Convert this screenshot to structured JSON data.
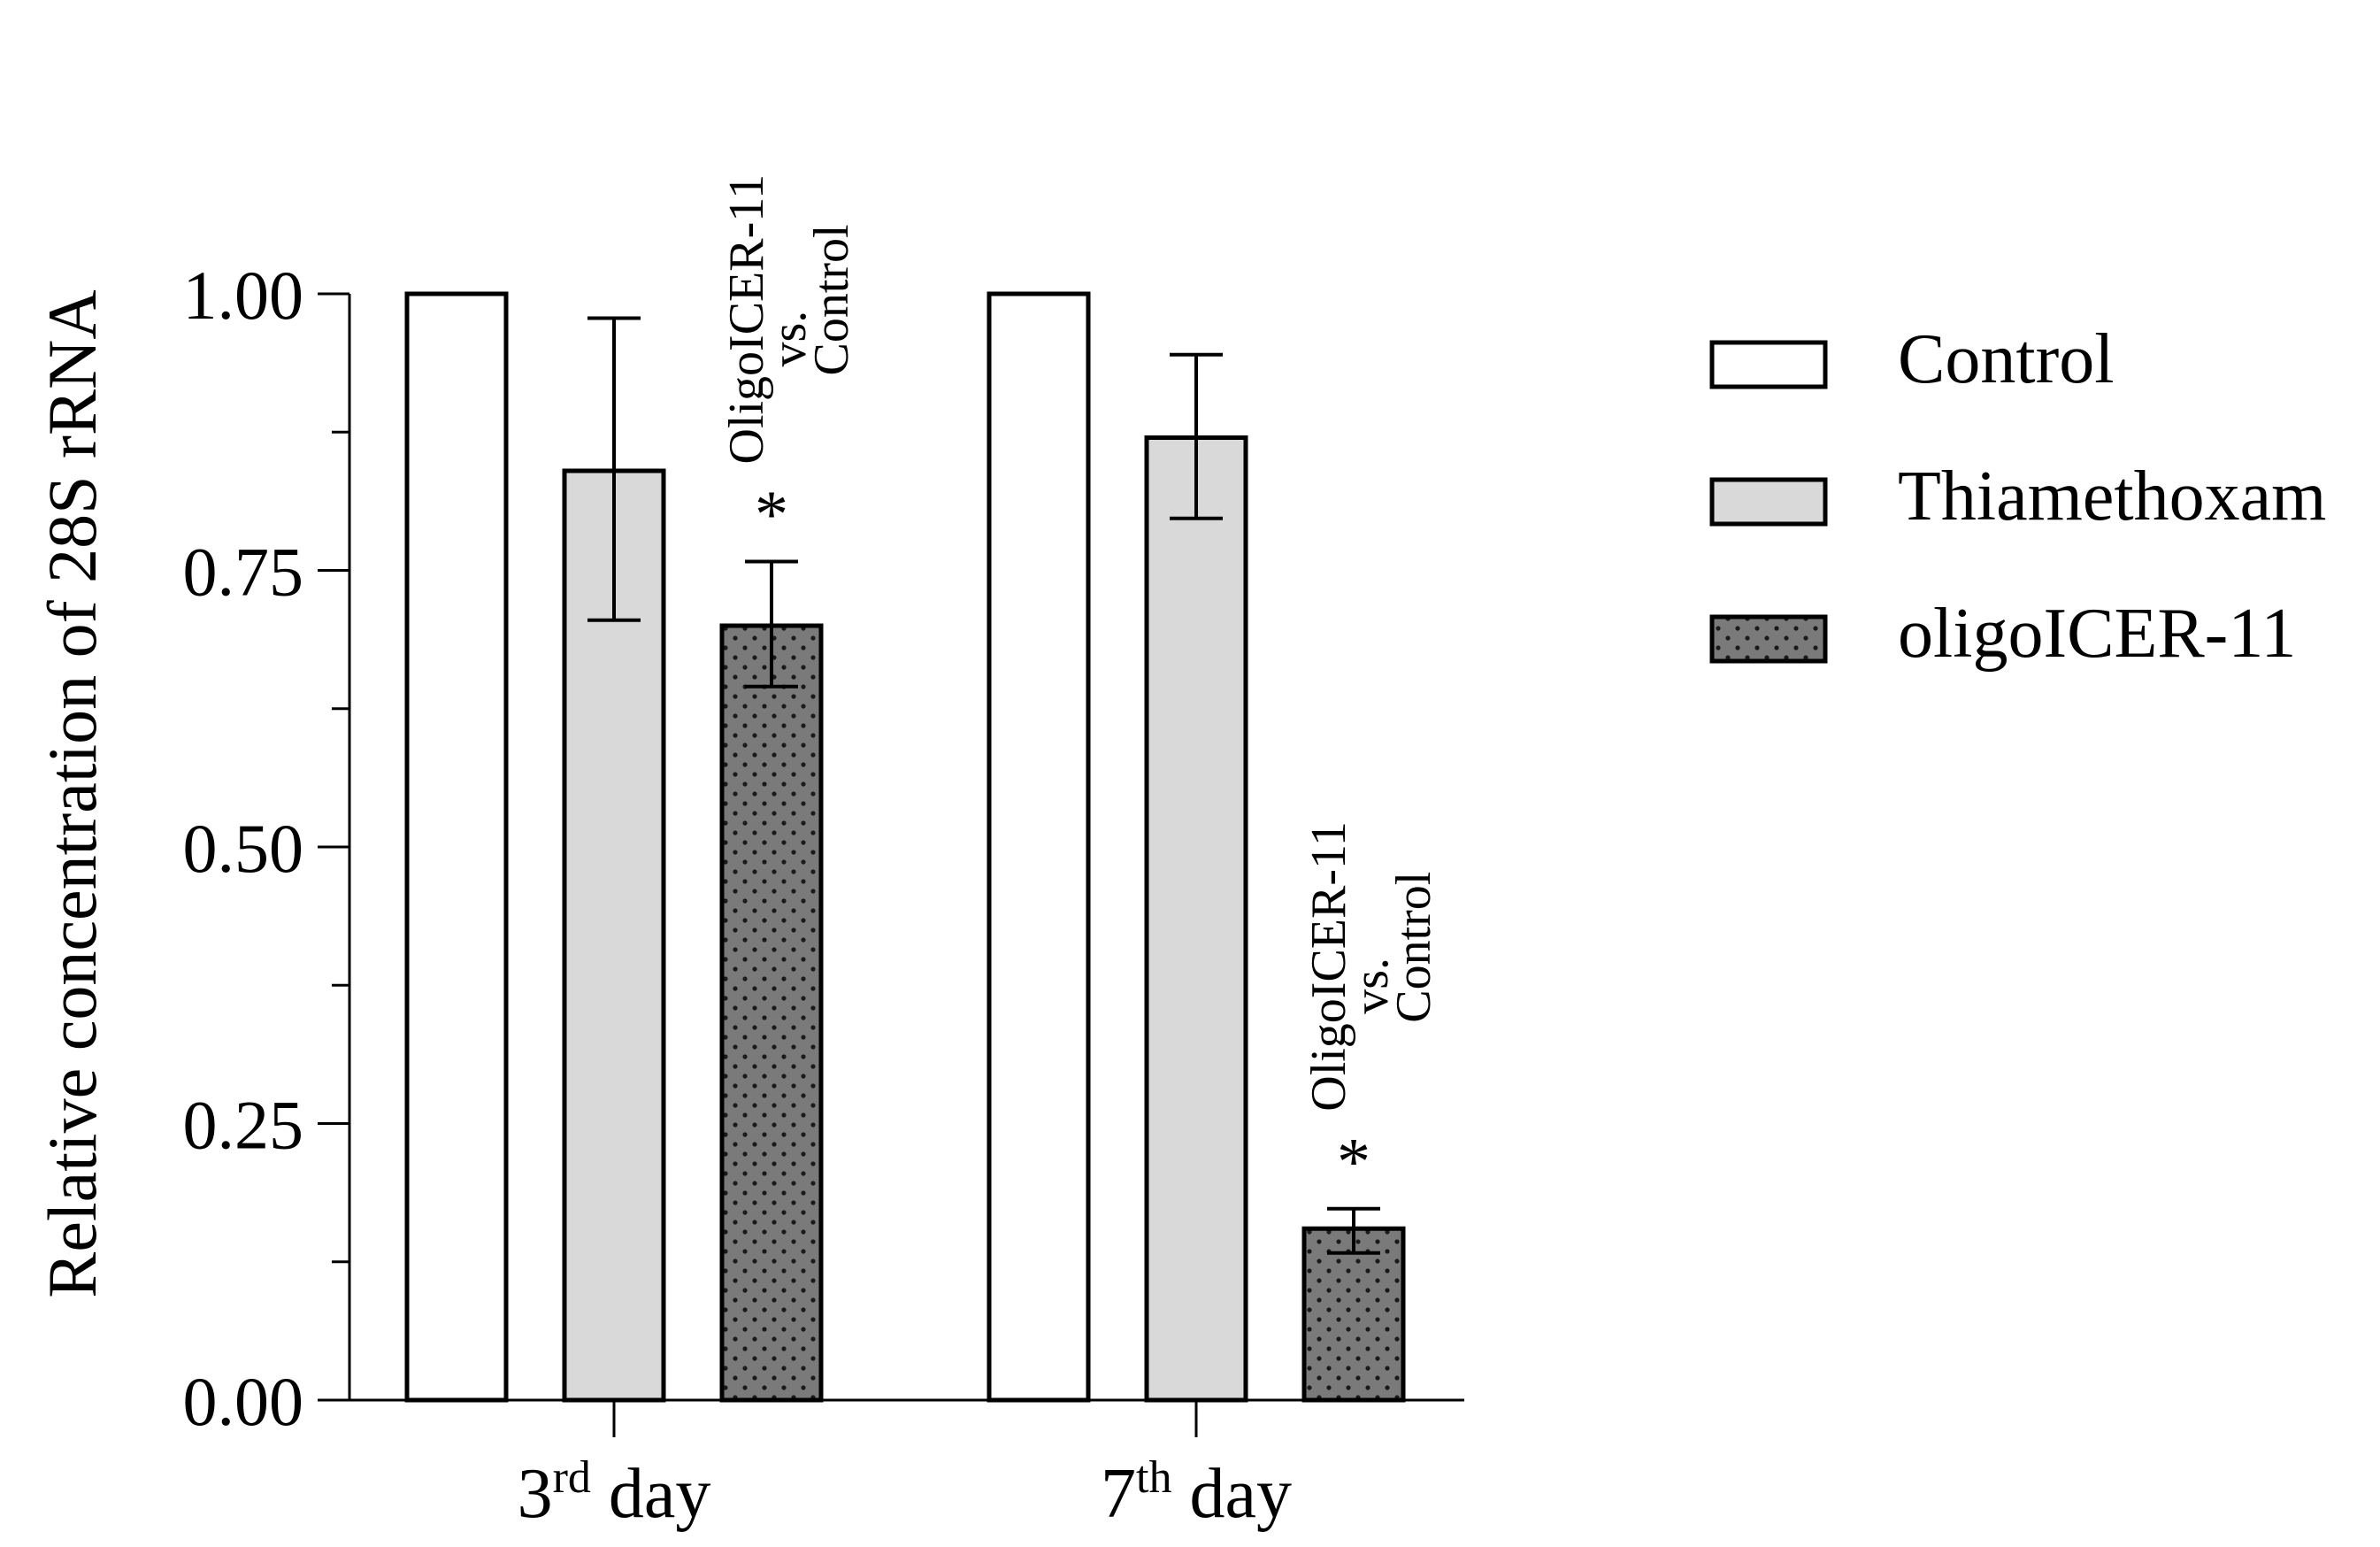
{
  "chart_data": {
    "type": "bar",
    "title": "",
    "ylabel": "Relative concentration of 28S rRNA",
    "xlabel": "",
    "ylim": [
      0,
      1
    ],
    "y_ticks": [
      "0.00",
      "0.25",
      "0.50",
      "0.75",
      "1.00"
    ],
    "y_tick_values": [
      0,
      0.25,
      0.5,
      0.75,
      1.0
    ],
    "categories": [
      {
        "base": "3",
        "sup": "rd",
        "rest": " day"
      },
      {
        "base": "7",
        "sup": "th",
        "rest": " day"
      }
    ],
    "series": [
      {
        "name": "Control",
        "fill": "#ffffff",
        "pattern": "none",
        "values": [
          1.0,
          1.0
        ],
        "errors": [
          null,
          null
        ]
      },
      {
        "name": "Thiamethoxam",
        "fill": "#d9d9d9",
        "pattern": "none",
        "values": [
          0.84,
          0.87
        ],
        "errors": [
          [
            0.705,
            0.978
          ],
          [
            0.797,
            0.945
          ]
        ]
      },
      {
        "name": "oligoICER-11",
        "fill": "#7a7a7a",
        "pattern": "dots",
        "values": [
          0.7,
          0.155
        ],
        "errors": [
          [
            0.645,
            0.758
          ],
          [
            0.133,
            0.173
          ]
        ]
      }
    ],
    "annotations": [
      {
        "category": 0,
        "series": 2,
        "star": "*",
        "lines": [
          "OligoICER-11",
          "vs.",
          "Control"
        ]
      },
      {
        "category": 1,
        "series": 2,
        "star": "*",
        "lines": [
          "OligoICER-11",
          "vs.",
          "Control"
        ]
      }
    ],
    "legend_position": "right"
  }
}
